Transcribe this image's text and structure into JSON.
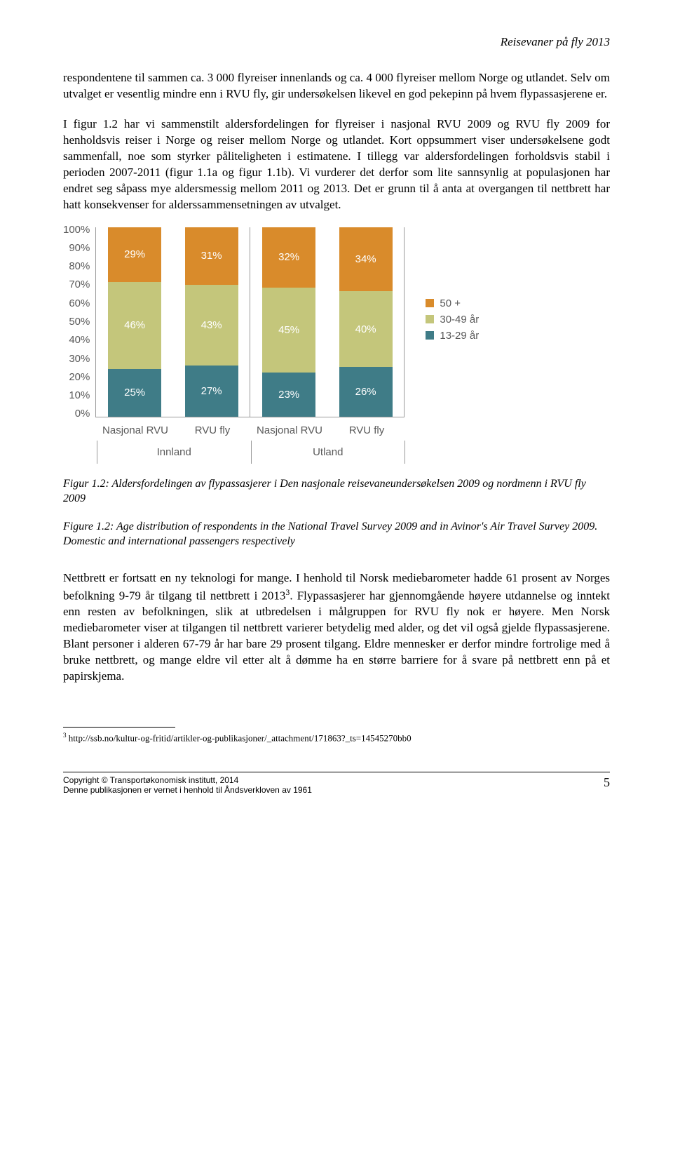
{
  "header": {
    "running_title": "Reisevaner på fly 2013"
  },
  "paragraphs": {
    "p1": "respondentene til sammen ca. 3 000 flyreiser innenlands og ca. 4 000 flyreiser mellom Norge og utlandet. Selv om utvalget er vesentlig mindre enn i RVU fly, gir undersøkelsen likevel en god pekepinn på hvem flypassasjerene er.",
    "p2a": "I figur 1.2 har vi sammenstilt aldersfordelingen for flyreiser i nasjonal RVU 2009 og RVU fly 2009 for henholdsvis reiser i Norge og reiser mellom Norge og utlandet. Kort oppsummert viser undersøkelsene godt sammenfall, noe som styrker påliteligheten i estimatene. I tillegg var aldersfordelingen forholdsvis stabil i perioden 2007-2011 (figur 1.1a og figur 1.1b). Vi vurderer det derfor som lite sannsynlig at populasjonen har endret seg såpass mye aldersmessig mellom 2011 og 2013. Det er grunn til å anta at overgangen til nettbrett har hatt konsekvenser for alderssammensetningen av utvalget.",
    "p3a": "Nettbrett er fortsatt en ny teknologi for mange. I henhold til Norsk mediebarometer hadde 61 prosent av Norges befolkning 9-79 år tilgang til nettbrett i 2013",
    "p3sup": "3",
    "p3b": ". Flypassasjerer har gjennomgående høyere utdannelse og inntekt enn resten av befolkningen, slik at utbredelsen i målgruppen for RVU fly nok er høyere. Men Norsk mediebarometer viser at tilgangen til nettbrett varierer betydelig med alder, og det vil også gjelde flypassasjerene. Blant personer i alderen 67-79 år har bare 29 prosent tilgang. Eldre mennesker er derfor mindre fortrolige med å bruke nettbrett, og mange eldre vil etter alt å dømme ha en større barriere for å svare på nettbrett enn på et papirskjema."
  },
  "chart": {
    "type": "stacked-bar",
    "y_ticks": [
      "100%",
      "90%",
      "80%",
      "70%",
      "60%",
      "50%",
      "40%",
      "30%",
      "20%",
      "10%",
      "0%"
    ],
    "colors": {
      "s50plus": "#d98b2b",
      "s30_49": "#c4c67b",
      "s13_29": "#3f7c87",
      "text_on_bar": "#ffffff",
      "axis": "#999999",
      "tick_text": "#595959"
    },
    "legend": [
      {
        "label": "50 +",
        "color": "#d98b2b"
      },
      {
        "label": "30-49 år",
        "color": "#c4c67b"
      },
      {
        "label": "13-29 år",
        "color": "#3f7c87"
      }
    ],
    "groups": [
      {
        "name": "Innland",
        "bars": [
          {
            "label": "Nasjonal RVU",
            "segments": [
              {
                "k": "s13_29",
                "v": 25,
                "t": "25%"
              },
              {
                "k": "s30_49",
                "v": 46,
                "t": "46%"
              },
              {
                "k": "s50plus",
                "v": 29,
                "t": "29%"
              }
            ]
          },
          {
            "label": "RVU fly",
            "segments": [
              {
                "k": "s13_29",
                "v": 27,
                "t": "27%"
              },
              {
                "k": "s30_49",
                "v": 43,
                "t": "43%"
              },
              {
                "k": "s50plus",
                "v": 31,
                "t": "31%"
              }
            ]
          }
        ]
      },
      {
        "name": "Utland",
        "bars": [
          {
            "label": "Nasjonal RVU",
            "segments": [
              {
                "k": "s13_29",
                "v": 23,
                "t": "23%"
              },
              {
                "k": "s30_49",
                "v": 45,
                "t": "45%"
              },
              {
                "k": "s50plus",
                "v": 32,
                "t": "32%"
              }
            ]
          },
          {
            "label": "RVU fly",
            "segments": [
              {
                "k": "s13_29",
                "v": 26,
                "t": "26%"
              },
              {
                "k": "s30_49",
                "v": 40,
                "t": "40%"
              },
              {
                "k": "s50plus",
                "v": 34,
                "t": "34%"
              }
            ]
          }
        ]
      }
    ]
  },
  "captions": {
    "c1": "Figur 1.2: Aldersfordelingen av flypassasjerer i Den nasjonale reisevaneundersøkelsen 2009 og nordmenn i RVU fly 2009",
    "c2": "Figure 1.2: Age distribution of respondents in the National Travel Survey 2009 and in Avinor's Air Travel Survey 2009. Domestic and international passengers respectively"
  },
  "footnote": {
    "marker": "3",
    "text": " http://ssb.no/kultur-og-fritid/artikler-og-publikasjoner/_attachment/171863?_ts=14545270bb0"
  },
  "footer": {
    "line1": "Copyright © Transportøkonomisk institutt, 2014",
    "line2": "Denne publikasjonen er vernet i henhold til Åndsverkloven av 1961",
    "page": "5"
  }
}
